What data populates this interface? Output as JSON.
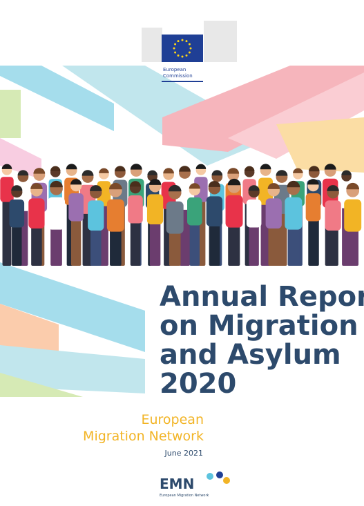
{
  "logo": {
    "line1": "European",
    "line2": "Commission"
  },
  "title": {
    "lines": [
      "Annual Report",
      "on Migration",
      "and Asylum",
      "2020"
    ]
  },
  "network": {
    "lines": [
      "European",
      "Migration Network"
    ]
  },
  "date": "June 2021",
  "emn": {
    "acronym": "EMN",
    "name": "European Migration Network"
  }
}
